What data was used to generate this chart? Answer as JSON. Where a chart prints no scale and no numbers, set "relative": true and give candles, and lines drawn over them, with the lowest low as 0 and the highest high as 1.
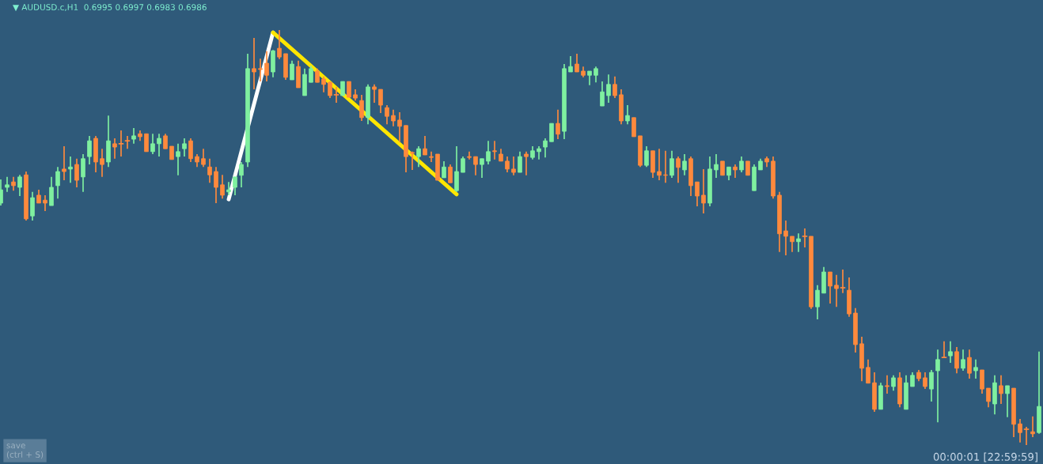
{
  "chart_data": {
    "type": "candlestick",
    "relative": true,
    "annotations": [
      "▼ AUDUSD.c,H1  0.6995 0.6997 0.6983 0.6986",
      "00:00:01 [22:59:59]",
      "save\n(ctrl + S)"
    ],
    "categories": [
      null,
      null,
      null,
      null,
      null,
      null,
      null,
      null,
      null,
      null,
      null,
      null,
      null,
      null,
      null,
      null,
      null,
      null,
      null,
      null,
      null,
      null,
      null,
      null,
      null,
      null,
      null,
      null,
      null,
      null,
      null,
      null,
      null,
      null,
      null,
      null,
      null,
      null,
      null,
      null,
      null,
      null,
      null,
      null,
      null,
      null,
      null,
      null,
      null,
      null,
      null,
      null,
      null,
      null,
      null,
      null,
      null,
      null,
      null,
      null,
      null,
      null,
      null,
      null,
      null,
      null,
      null,
      null,
      null,
      null,
      null,
      null,
      null,
      null,
      null,
      null,
      null,
      null,
      null,
      null,
      null,
      null,
      null,
      null,
      null,
      null,
      null,
      null,
      null,
      null,
      null,
      null,
      null,
      null,
      null,
      null,
      null,
      null,
      null,
      null,
      null,
      null,
      null,
      null,
      null,
      null,
      null,
      null,
      null,
      null,
      null,
      null,
      null,
      null,
      null,
      null,
      null,
      null,
      null,
      null,
      null,
      null,
      null,
      null,
      null,
      null,
      null,
      null,
      null,
      null,
      null,
      null,
      null,
      null,
      null,
      null,
      null,
      null,
      null,
      null,
      null,
      null,
      null,
      null,
      null,
      null,
      null,
      null,
      null,
      null,
      null,
      null,
      null,
      null,
      null,
      null,
      null,
      null,
      null,
      null,
      null,
      null,
      null,
      null,
      null
    ],
    "colors": [
      "#7ff0a0",
      "#7ff0a0",
      "#ff8a3d",
      "#7ff0a0",
      "#ff8a3d",
      "#7ff0a0",
      "#ff8a3d",
      "#ff8a3d",
      "#7ff0a0",
      "#7ff0a0",
      "#ff8a3d",
      "#7ff0a0",
      "#ff8a3d",
      "#7ff0a0",
      "#7ff0a0",
      "#ff8a3d",
      "#ff8a3d",
      "#7ff0a0",
      "#ff8a3d",
      "#ff8a3d",
      "#ff8a3d",
      "#7ff0a0",
      "#ff8a3d",
      "#ff8a3d",
      "#7ff0a0",
      "#7ff0a0",
      "#ff8a3d",
      "#ff8a3d",
      "#7ff0a0",
      "#7ff0a0",
      "#ff8a3d",
      "#ff8a3d",
      "#ff8a3d",
      "#ff8a3d",
      "#ff8a3d",
      "#ff8a3d",
      "#7ff0a0",
      "#7ff0a0",
      "#7ff0a0",
      "#7ff0a0",
      "#ff8a3d",
      "#ff8a3d",
      "#ff8a3d",
      "#7ff0a0",
      "#ff8a3d",
      "#ff8a3d",
      "#7ff0a0",
      "#ff8a3d",
      "#7ff0a0",
      "#7ff0a0",
      "#ff8a3d",
      "#ff8a3d",
      "#ff8a3d",
      "#ff8a3d",
      "#7ff0a0",
      "#ff8a3d",
      "#ff8a3d",
      "#ff8a3d",
      "#7ff0a0",
      "#ff8a3d",
      "#ff8a3d",
      "#ff8a3d",
      "#ff8a3d",
      "#ff8a3d",
      "#ff8a3d",
      "#ff8a3d",
      "#7ff0a0",
      "#ff8a3d",
      "#ff8a3d",
      "#ff8a3d",
      "#7ff0a0",
      "#ff8a3d",
      "#7ff0a0",
      "#7ff0a0",
      "#ff8a3d",
      "#ff8a3d",
      "#7ff0a0",
      "#7ff0a0",
      "#ff8a3d",
      "#ff8a3d",
      "#ff8a3d",
      "#ff8a3d",
      "#7ff0a0",
      "#ff8a3d",
      "#7ff0a0",
      "#7ff0a0",
      "#7ff0a0",
      "#7ff0a0",
      "#ff8a3d",
      "#7ff0a0",
      "#7ff0a0",
      "#ff8a3d",
      "#ff8a3d",
      "#7ff0a0",
      "#7ff0a0",
      "#7ff0a0",
      "#7ff0a0",
      "#ff8a3d",
      "#ff8a3d",
      "#7ff0a0",
      "#ff8a3d",
      "#ff8a3d",
      "#7ff0a0",
      "#ff8a3d",
      "#ff8a3d",
      "#ff8a3d",
      "#7ff0a0",
      "#ff8a3d",
      "#7ff0a0",
      "#ff8a3d",
      "#ff8a3d",
      "#ff8a3d",
      "#7ff0a0",
      "#7ff0a0",
      "#ff8a3d",
      "#7ff0a0",
      "#ff8a3d",
      "#7ff0a0",
      "#ff8a3d",
      "#7ff0a0",
      "#7ff0a0",
      "#ff8a3d",
      "#ff8a3d",
      "#ff8a3d",
      "#ff8a3d",
      "#ff8a3d",
      "#7ff0a0",
      "#ff8a3d",
      "#ff8a3d",
      "#7ff0a0",
      "#7ff0a0",
      "#ff8a3d",
      "#ff8a3d",
      "#ff8a3d",
      "#ff8a3d",
      "#ff8a3d",
      "#ff8a3d",
      "#ff8a3d",
      "#ff8a3d",
      "#7ff0a0",
      "#ff8a3d",
      "#7ff0a0",
      "#ff8a3d",
      "#7ff0a0",
      "#7ff0a0",
      "#ff8a3d",
      "#ff8a3d",
      "#7ff0a0",
      "#7ff0a0",
      "#ff8a3d",
      "#7ff0a0",
      "#ff8a3d",
      "#7ff0a0",
      "#ff8a3d",
      "#7ff0a0",
      "#ff8a3d",
      "#ff8a3d",
      "#7ff0a0",
      "#ff8a3d",
      "#7ff0a0",
      "#ff8a3d",
      "#ff8a3d",
      "#ff8a3d",
      "#ff8a3d",
      "#7ff0a0"
    ],
    "ohlc": [
      [
        0.583,
        0.64,
        0.577,
        0.615
      ],
      [
        0.621,
        0.646,
        0.61,
        0.627
      ],
      [
        0.634,
        0.646,
        0.613,
        0.625
      ],
      [
        0.621,
        0.651,
        0.6,
        0.646
      ],
      [
        0.651,
        0.659,
        0.541,
        0.545
      ],
      [
        0.552,
        0.61,
        0.541,
        0.596
      ],
      [
        0.602,
        0.615,
        0.583,
        0.583
      ],
      [
        0.59,
        0.602,
        0.564,
        0.583
      ],
      [
        0.577,
        0.646,
        0.577,
        0.621
      ],
      [
        0.625,
        0.67,
        0.594,
        0.659
      ],
      [
        0.665,
        0.72,
        0.638,
        0.659
      ],
      [
        0.665,
        0.695,
        0.632,
        0.67
      ],
      [
        0.676,
        0.69,
        0.621,
        0.638
      ],
      [
        0.646,
        0.701,
        0.61,
        0.69
      ],
      [
        0.695,
        0.745,
        0.676,
        0.733
      ],
      [
        0.739,
        0.745,
        0.657,
        0.682
      ],
      [
        0.69,
        0.714,
        0.646,
        0.676
      ],
      [
        0.682,
        0.794,
        0.67,
        0.733
      ],
      [
        0.726,
        0.739,
        0.69,
        0.718
      ],
      [
        0.726,
        0.758,
        0.695,
        0.726
      ],
      [
        0.733,
        0.745,
        0.714,
        0.733
      ],
      [
        0.737,
        0.764,
        0.726,
        0.745
      ],
      [
        0.75,
        0.758,
        0.733,
        0.743
      ],
      [
        0.75,
        0.75,
        0.707,
        0.707
      ],
      [
        0.707,
        0.75,
        0.701,
        0.726
      ],
      [
        0.726,
        0.75,
        0.695,
        0.739
      ],
      [
        0.745,
        0.75,
        0.714,
        0.714
      ],
      [
        0.72,
        0.72,
        0.688,
        0.688
      ],
      [
        0.695,
        0.726,
        0.65,
        0.707
      ],
      [
        0.714,
        0.739,
        0.695,
        0.726
      ],
      [
        0.733,
        0.739,
        0.682,
        0.69
      ],
      [
        0.695,
        0.701,
        0.67,
        0.682
      ],
      [
        0.69,
        0.714,
        0.67,
        0.676
      ],
      [
        0.67,
        0.69,
        0.632,
        0.651
      ],
      [
        0.659,
        0.67,
        0.583,
        0.621
      ],
      [
        0.627,
        0.651,
        0.594,
        0.602
      ],
      [
        0.61,
        0.634,
        0.602,
        0.615
      ],
      [
        0.621,
        0.646,
        0.602,
        0.646
      ],
      [
        0.65,
        0.682,
        0.621,
        0.676
      ],
      [
        0.682,
        0.943,
        0.67,
        0.907
      ],
      [
        0.907,
        0.981,
        0.857,
        0.899
      ],
      [
        0.907,
        0.931,
        0.876,
        0.905
      ],
      [
        0.92,
        0.949,
        0.876,
        0.891
      ],
      [
        0.899,
        0.952,
        0.886,
        0.95
      ],
      [
        0.956,
        1.0,
        0.93,
        0.935
      ],
      [
        0.943,
        0.943,
        0.88,
        0.886
      ],
      [
        0.88,
        0.926,
        0.88,
        0.918
      ],
      [
        0.912,
        0.926,
        0.861,
        0.861
      ],
      [
        0.842,
        0.907,
        0.842,
        0.893
      ],
      [
        0.874,
        0.914,
        0.874,
        0.907
      ],
      [
        0.901,
        0.907,
        0.874,
        0.874
      ],
      [
        0.882,
        0.888,
        0.85,
        0.869
      ],
      [
        0.874,
        0.876,
        0.836,
        0.842
      ],
      [
        0.844,
        0.863,
        0.825,
        0.844
      ],
      [
        0.842,
        0.876,
        0.842,
        0.876
      ],
      [
        0.876,
        0.876,
        0.838,
        0.838
      ],
      [
        0.844,
        0.857,
        0.83,
        0.836
      ],
      [
        0.83,
        0.844,
        0.781,
        0.789
      ],
      [
        0.789,
        0.869,
        0.773,
        0.863
      ],
      [
        0.863,
        0.869,
        0.825,
        0.857
      ],
      [
        0.857,
        0.857,
        0.8,
        0.819
      ],
      [
        0.813,
        0.819,
        0.773,
        0.792
      ],
      [
        0.794,
        0.808,
        0.768,
        0.781
      ],
      [
        0.783,
        0.802,
        0.73,
        0.768
      ],
      [
        0.77,
        0.77,
        0.657,
        0.695
      ],
      [
        0.705,
        0.707,
        0.663,
        0.703
      ],
      [
        0.695,
        0.72,
        0.67,
        0.714
      ],
      [
        0.714,
        0.745,
        0.699,
        0.699
      ],
      [
        0.695,
        0.707,
        0.682,
        0.693
      ],
      [
        0.701,
        0.701,
        0.638,
        0.638
      ],
      [
        0.644,
        0.684,
        0.644,
        0.67
      ],
      [
        0.67,
        0.676,
        0.632,
        0.632
      ],
      [
        0.613,
        0.72,
        0.61,
        0.659
      ],
      [
        0.657,
        0.695,
        0.657,
        0.69
      ],
      [
        0.695,
        0.707,
        0.688,
        0.693
      ],
      [
        0.695,
        0.695,
        0.65,
        0.676
      ],
      [
        0.676,
        0.69,
        0.644,
        0.69
      ],
      [
        0.684,
        0.733,
        0.676,
        0.707
      ],
      [
        0.709,
        0.733,
        0.688,
        0.707
      ],
      [
        0.701,
        0.714,
        0.684,
        0.684
      ],
      [
        0.684,
        0.695,
        0.657,
        0.665
      ],
      [
        0.665,
        0.695,
        0.65,
        0.657
      ],
      [
        0.657,
        0.707,
        0.657,
        0.695
      ],
      [
        0.701,
        0.707,
        0.65,
        0.695
      ],
      [
        0.693,
        0.72,
        0.688,
        0.709
      ],
      [
        0.707,
        0.72,
        0.688,
        0.714
      ],
      [
        0.718,
        0.739,
        0.693,
        0.733
      ],
      [
        0.731,
        0.775,
        0.731,
        0.775
      ],
      [
        0.775,
        0.808,
        0.737,
        0.749
      ],
      [
        0.756,
        0.918,
        0.737,
        0.907
      ],
      [
        0.899,
        0.937,
        0.899,
        0.912
      ],
      [
        0.918,
        0.943,
        0.899,
        0.899
      ],
      [
        0.901,
        0.912,
        0.886,
        0.891
      ],
      [
        0.891,
        0.901,
        0.867,
        0.901
      ],
      [
        0.891,
        0.912,
        0.874,
        0.907
      ],
      [
        0.817,
        0.876,
        0.817,
        0.851
      ],
      [
        0.842,
        0.893,
        0.825,
        0.869
      ],
      [
        0.869,
        0.888,
        0.836,
        0.842
      ],
      [
        0.844,
        0.857,
        0.773,
        0.781
      ],
      [
        0.781,
        0.819,
        0.773,
        0.794
      ],
      [
        0.789,
        0.789,
        0.743,
        0.743
      ],
      [
        0.745,
        0.745,
        0.67,
        0.674
      ],
      [
        0.674,
        0.72,
        0.67,
        0.709
      ],
      [
        0.709,
        0.709,
        0.644,
        0.657
      ],
      [
        0.659,
        0.714,
        0.638,
        0.65
      ],
      [
        0.651,
        0.709,
        0.632,
        0.65
      ],
      [
        0.65,
        0.709,
        0.644,
        0.69
      ],
      [
        0.69,
        0.695,
        0.632,
        0.669
      ],
      [
        0.663,
        0.701,
        0.65,
        0.684
      ],
      [
        0.69,
        0.695,
        0.6,
        0.625
      ],
      [
        0.634,
        0.634,
        0.575,
        0.6
      ],
      [
        0.602,
        0.665,
        0.558,
        0.583
      ],
      [
        0.583,
        0.695,
        0.575,
        0.665
      ],
      [
        0.663,
        0.701,
        0.644,
        0.676
      ],
      [
        0.684,
        0.684,
        0.65,
        0.65
      ],
      [
        0.65,
        0.67,
        0.638,
        0.67
      ],
      [
        0.67,
        0.676,
        0.644,
        0.663
      ],
      [
        0.663,
        0.695,
        0.657,
        0.684
      ],
      [
        0.684,
        0.684,
        0.65,
        0.65
      ],
      [
        0.613,
        0.676,
        0.613,
        0.67
      ],
      [
        0.663,
        0.69,
        0.663,
        0.684
      ],
      [
        0.69,
        0.695,
        0.67,
        0.682
      ],
      [
        0.684,
        0.695,
        0.594,
        0.6
      ],
      [
        0.602,
        0.61,
        0.465,
        0.509
      ],
      [
        0.516,
        0.541,
        0.457,
        0.503
      ],
      [
        0.503,
        0.503,
        0.465,
        0.49
      ],
      [
        0.49,
        0.51,
        0.465,
        0.497
      ],
      [
        0.503,
        0.522,
        0.476,
        0.503
      ],
      [
        0.503,
        0.503,
        0.328,
        0.333
      ],
      [
        0.333,
        0.385,
        0.303,
        0.373
      ],
      [
        0.366,
        0.429,
        0.366,
        0.417
      ],
      [
        0.417,
        0.417,
        0.341,
        0.383
      ],
      [
        0.385,
        0.41,
        0.333,
        0.377
      ],
      [
        0.379,
        0.423,
        0.366,
        0.379
      ],
      [
        0.373,
        0.404,
        0.309,
        0.316
      ],
      [
        0.318,
        0.33,
        0.223,
        0.242
      ],
      [
        0.244,
        0.261,
        0.154,
        0.185
      ],
      [
        0.187,
        0.206,
        0.149,
        0.149
      ],
      [
        0.15,
        0.175,
        0.08,
        0.086
      ],
      [
        0.086,
        0.15,
        0.086,
        0.143
      ],
      [
        0.143,
        0.168,
        0.124,
        0.141
      ],
      [
        0.141,
        0.168,
        0.131,
        0.162
      ],
      [
        0.162,
        0.175,
        0.091,
        0.099
      ],
      [
        0.086,
        0.168,
        0.086,
        0.15
      ],
      [
        0.141,
        0.175,
        0.141,
        0.168
      ],
      [
        0.175,
        0.181,
        0.154,
        0.16
      ],
      [
        0.162,
        0.175,
        0.135,
        0.141
      ],
      [
        0.135,
        0.181,
        0.105,
        0.175
      ],
      [
        0.179,
        0.23,
        0.055,
        0.206
      ],
      [
        0.211,
        0.25,
        0.211,
        0.211
      ],
      [
        0.215,
        0.25,
        0.198,
        0.225
      ],
      [
        0.225,
        0.236,
        0.173,
        0.185
      ],
      [
        0.185,
        0.23,
        0.179,
        0.206
      ],
      [
        0.211,
        0.23,
        0.16,
        0.173
      ],
      [
        0.179,
        0.206,
        0.16,
        0.187
      ],
      [
        0.181,
        0.181,
        0.124,
        0.135
      ],
      [
        0.137,
        0.137,
        0.091,
        0.105
      ],
      [
        0.099,
        0.168,
        0.074,
        0.15
      ],
      [
        0.143,
        0.168,
        0.099,
        0.124
      ],
      [
        0.124,
        0.143,
        0.067,
        0.143
      ],
      [
        0.137,
        0.137,
        0.019,
        0.05
      ],
      [
        0.051,
        0.063,
        0.006,
        0.03
      ],
      [
        0.038,
        0.044,
        0.0,
        0.038
      ],
      [
        0.032,
        0.069,
        0.019,
        0.027
      ],
      [
        0.03,
        0.225,
        0.027,
        0.093
      ]
    ],
    "series": [
      {
        "type": "line",
        "color": "#ffffff",
        "values": [
          null,
          null,
          null,
          null,
          null,
          null,
          null,
          null,
          null,
          null,
          null,
          null,
          null,
          null,
          null,
          null,
          null,
          null,
          null,
          null,
          null,
          null,
          null,
          null,
          null,
          null,
          null,
          null,
          null,
          null,
          null,
          null,
          null,
          null,
          null,
          null,
          0.592,
          null,
          null,
          null,
          null,
          null,
          null,
          0.994,
          null,
          null,
          null,
          null,
          null,
          null,
          null,
          null,
          null,
          null,
          null,
          null,
          null,
          null,
          null,
          null,
          null,
          null,
          null,
          null,
          null,
          null,
          null,
          null,
          null,
          null,
          null,
          null,
          null,
          null,
          null,
          null,
          null,
          null,
          null,
          null,
          null,
          null,
          null,
          null,
          null,
          null,
          null,
          null,
          null,
          null,
          null,
          null,
          null,
          null,
          null,
          null,
          null,
          null,
          null,
          null,
          null,
          null,
          null,
          null,
          null,
          null,
          null,
          null,
          null,
          null,
          null,
          null,
          null,
          null,
          null,
          null,
          null,
          null,
          null,
          null,
          null,
          null,
          null,
          null,
          null,
          null,
          null,
          null,
          null,
          null,
          null,
          null,
          null,
          null,
          null,
          null,
          null,
          null,
          null,
          null,
          null,
          null,
          null,
          null,
          null,
          null,
          null,
          null,
          null,
          null,
          null,
          null,
          null,
          null,
          null,
          null,
          null,
          null,
          null,
          null,
          null,
          null,
          null,
          null,
          null
        ]
      },
      {
        "type": "line",
        "color": "#ffe600",
        "values": [
          null,
          null,
          null,
          null,
          null,
          null,
          null,
          null,
          null,
          null,
          null,
          null,
          null,
          null,
          null,
          null,
          null,
          null,
          null,
          null,
          null,
          null,
          null,
          null,
          null,
          null,
          null,
          null,
          null,
          null,
          null,
          null,
          null,
          null,
          null,
          null,
          null,
          null,
          null,
          null,
          null,
          null,
          null,
          0.994,
          null,
          null,
          null,
          null,
          null,
          null,
          null,
          null,
          null,
          null,
          null,
          null,
          null,
          null,
          null,
          null,
          null,
          null,
          null,
          null,
          null,
          null,
          null,
          null,
          null,
          null,
          null,
          null,
          0.604,
          null,
          null,
          null,
          null,
          null,
          null,
          null,
          null,
          null,
          null,
          null,
          null,
          null,
          null,
          null,
          null,
          null,
          null,
          null,
          null,
          null,
          null,
          null,
          null,
          null,
          null,
          null,
          null,
          null,
          null,
          null,
          null,
          null,
          null,
          null,
          null,
          null,
          null,
          null,
          null,
          null,
          null,
          null,
          null,
          null,
          null,
          null,
          null,
          null,
          null,
          null,
          null,
          null,
          null,
          null,
          null,
          null,
          null,
          null,
          null,
          null,
          null,
          null,
          null,
          null,
          null,
          null,
          null,
          null,
          null,
          null,
          null,
          null,
          null,
          null,
          null,
          null,
          null,
          null,
          null,
          null,
          null,
          null,
          null,
          null,
          null,
          null,
          null,
          null,
          null,
          null,
          null
        ]
      }
    ],
    "line_style": "solid",
    "marker": "none",
    "legend": false
  }
}
